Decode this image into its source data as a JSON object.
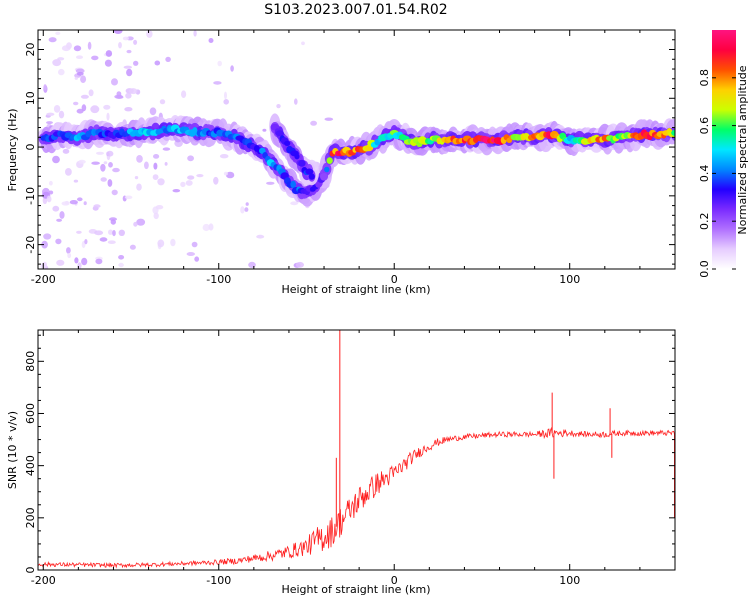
{
  "figure": {
    "title": "S103.2023.007.01.54.R02"
  },
  "chart_data": [
    {
      "type": "heatmap",
      "title": "S103.2023.007.01.54.R02",
      "xlabel": "Height of straight line (km)",
      "ylabel": "Frequency (Hz)",
      "xlim": [
        -203,
        160
      ],
      "ylim": [
        -25,
        24
      ],
      "x_ticks": [
        -200,
        -100,
        0,
        100
      ],
      "y_ticks": [
        -20,
        -10,
        0,
        10,
        20
      ],
      "colorbar": {
        "label": "Normalized spectral amplitude",
        "ticks": [
          0.0,
          0.2,
          0.4,
          0.6,
          0.8
        ],
        "tick_labels": [
          "0.0",
          "0.2",
          "0.4",
          "0.6",
          "0.8"
        ],
        "range": [
          0,
          1
        ],
        "colormap": [
          "#ffffff",
          "#e6ccff",
          "#b070ff",
          "#7a2bff",
          "#2200ff",
          "#0088ff",
          "#00e8ff",
          "#00ff66",
          "#ccff00",
          "#ffd000",
          "#ff5000",
          "#ff0040",
          "#ff1480"
        ]
      },
      "ridge": {
        "x": [
          -200,
          -190,
          -180,
          -170,
          -160,
          -150,
          -140,
          -130,
          -120,
          -110,
          -100,
          -90,
          -85,
          -80,
          -75,
          -70,
          -65,
          -60,
          -55,
          -50,
          -45,
          -40,
          -35,
          -30,
          -25,
          -20,
          -15,
          -10,
          -5,
          0,
          5,
          10,
          15,
          20,
          30,
          40,
          50,
          60,
          70,
          80,
          90,
          100,
          110,
          120,
          130,
          140,
          150,
          160
        ],
        "y": [
          1.5,
          2.5,
          2,
          3,
          2.5,
          3,
          3,
          3.5,
          3.5,
          3,
          3,
          2,
          1,
          0,
          -1,
          -3,
          -5,
          -7,
          -9,
          -9,
          -8,
          -6,
          -1,
          -1,
          -1,
          -0.5,
          0,
          1,
          2,
          3,
          2,
          1,
          1,
          1.5,
          1.5,
          1.5,
          1.5,
          1.5,
          2,
          2,
          2.5,
          1.5,
          1.5,
          1.5,
          2,
          2.5,
          2.5,
          3
        ],
        "amplitude": [
          0.4,
          0.35,
          0.45,
          0.4,
          0.35,
          0.45,
          0.5,
          0.45,
          0.45,
          0.4,
          0.4,
          0.4,
          0.35,
          0.35,
          0.4,
          0.45,
          0.4,
          0.35,
          0.4,
          0.3,
          0.3,
          0.25,
          0.85,
          0.9,
          0.8,
          0.85,
          0.75,
          0.5,
          0.5,
          0.6,
          0.55,
          0.7,
          0.75,
          0.6,
          0.8,
          0.85,
          0.95,
          0.9,
          0.7,
          0.85,
          0.9,
          0.5,
          0.7,
          0.8,
          0.6,
          0.85,
          0.9,
          0.6
        ]
      },
      "secondary_ridge": {
        "x": [
          -68,
          -62,
          -56,
          -50,
          -46
        ],
        "y": [
          4,
          1,
          -2,
          -5,
          -6
        ],
        "amplitude": [
          0.3,
          0.35,
          0.3,
          0.35,
          0.3
        ]
      }
    },
    {
      "type": "line",
      "xlabel": "Height of straight line (km)",
      "ylabel": "SNR (10 * v/v)",
      "xlim": [
        -203,
        160
      ],
      "ylim": [
        0,
        920
      ],
      "x_ticks": [
        -200,
        -100,
        0,
        100
      ],
      "y_ticks": [
        0,
        200,
        400,
        600,
        800
      ],
      "color": "#ff2020",
      "series": [
        {
          "x": [
            -203,
            -180,
            -160,
            -140,
            -120,
            -100,
            -90,
            -80,
            -70,
            -60,
            -50,
            -45,
            -40,
            -35,
            -30,
            -25,
            -20,
            -15,
            -10,
            -5,
            0,
            5,
            10,
            15,
            20,
            25,
            30,
            40,
            50,
            60,
            70,
            80,
            90,
            100,
            110,
            120,
            130,
            140,
            150,
            160
          ],
          "y": [
            22,
            20,
            18,
            20,
            25,
            30,
            35,
            45,
            55,
            70,
            90,
            110,
            130,
            150,
            190,
            230,
            270,
            300,
            330,
            350,
            370,
            400,
            430,
            455,
            475,
            490,
            500,
            510,
            515,
            520,
            520,
            520,
            525,
            525,
            520,
            520,
            525,
            525,
            525,
            525
          ],
          "noise": [
            8,
            8,
            8,
            8,
            8,
            10,
            12,
            15,
            20,
            25,
            35,
            50,
            60,
            60,
            60,
            55,
            55,
            50,
            45,
            40,
            35,
            30,
            25,
            20,
            18,
            15,
            12,
            10,
            10,
            10,
            10,
            10,
            20,
            12,
            10,
            12,
            10,
            10,
            10,
            10
          ]
        }
      ],
      "spikes": [
        {
          "x": -31,
          "y": 920
        },
        {
          "x": -33,
          "y": 430
        },
        {
          "x": 90,
          "y": 680
        },
        {
          "x": 91,
          "y": 350
        },
        {
          "x": 123,
          "y": 620
        },
        {
          "x": 124,
          "y": 430
        }
      ]
    }
  ]
}
